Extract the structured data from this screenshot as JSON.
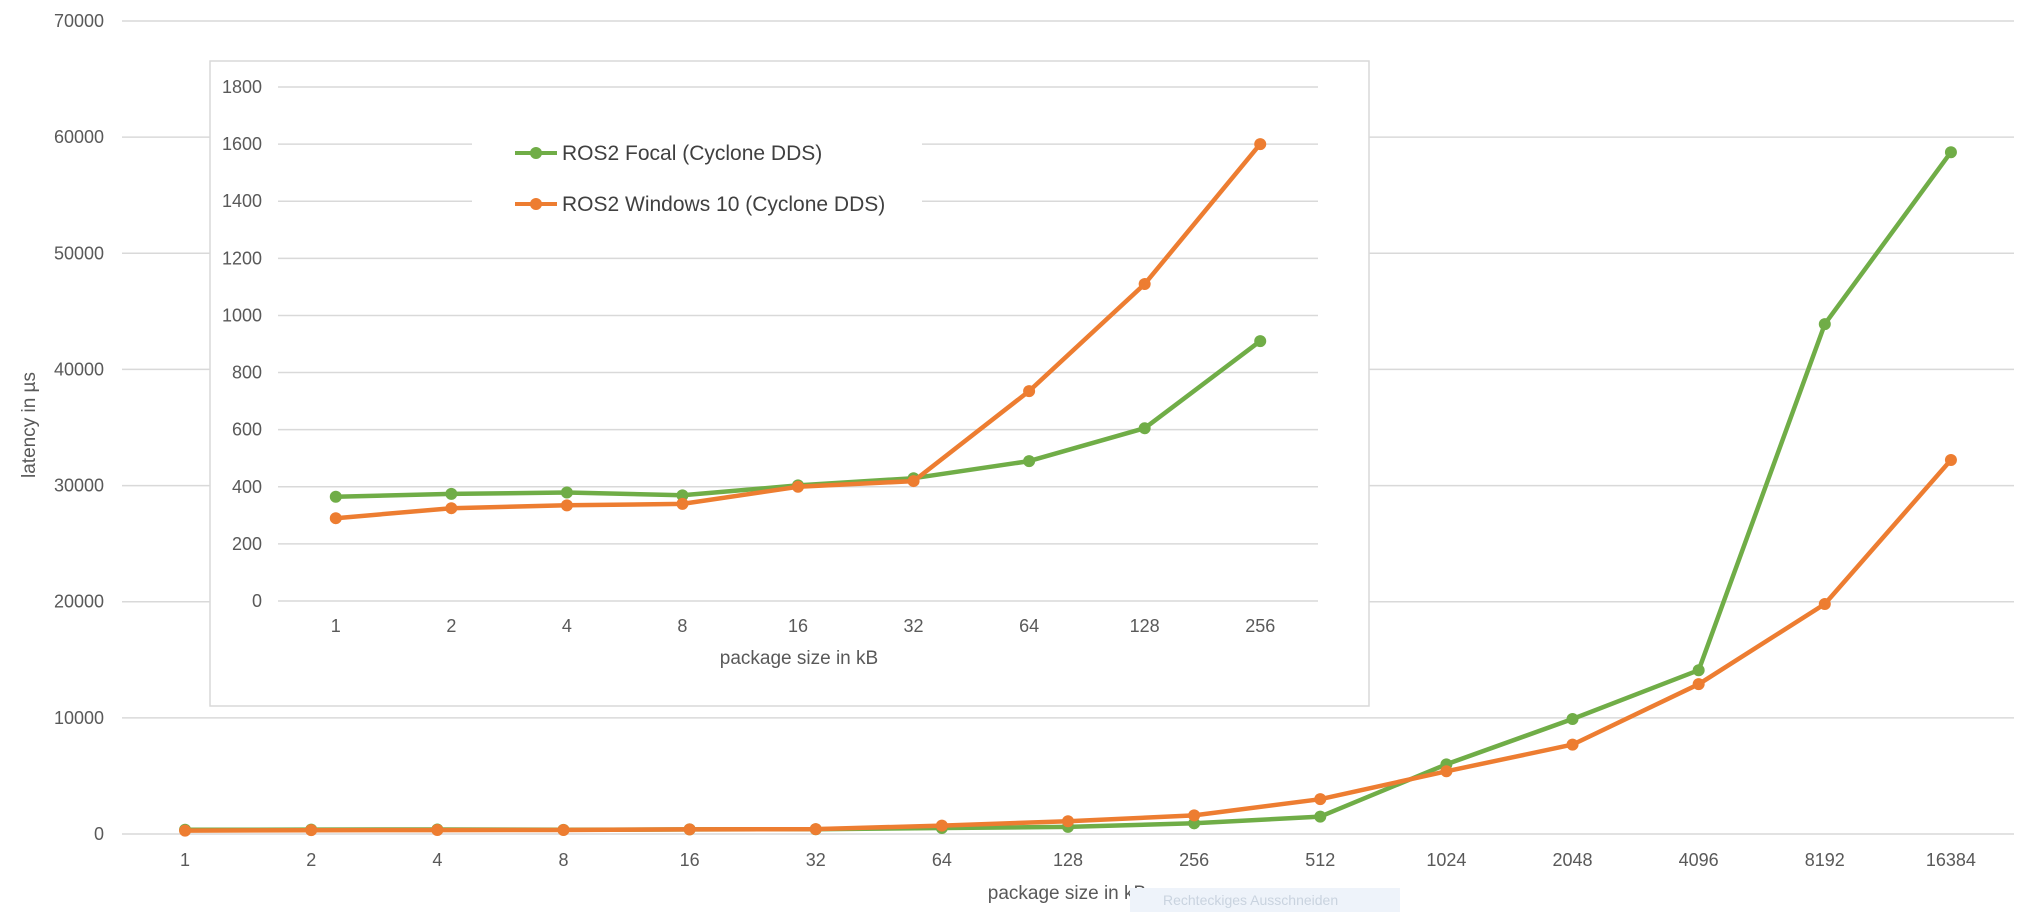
{
  "chart_data": [
    {
      "type": "line",
      "xlabel": "package size in kB",
      "ylabel": "latency in µs",
      "categories": [
        "1",
        "2",
        "4",
        "8",
        "16",
        "32",
        "64",
        "128",
        "256",
        "512",
        "1024",
        "2048",
        "4096",
        "8192",
        "16384"
      ],
      "ylim": [
        0,
        70000
      ],
      "yticks": [
        0,
        10000,
        20000,
        30000,
        40000,
        50000,
        60000,
        70000
      ],
      "grid": "horizontal",
      "series": [
        {
          "name": "ROS2 Focal (Cyclone DDS)",
          "color": "#70AD47",
          "values": [
            365,
            375,
            385,
            360,
            400,
            410,
            520,
            610,
            920,
            1500,
            6000,
            9900,
            14100,
            43900,
            58700
          ]
        },
        {
          "name": "ROS2 Windows 10 (Cyclone DDS)",
          "color": "#ED7D31",
          "values": [
            290,
            330,
            340,
            345,
            395,
            420,
            720,
            1100,
            1600,
            3000,
            5400,
            7700,
            12900,
            19800,
            32200
          ]
        }
      ]
    },
    {
      "type": "line",
      "xlabel": "package size in kB",
      "ylabel": "",
      "categories": [
        "1",
        "2",
        "4",
        "8",
        "16",
        "32",
        "64",
        "128",
        "256"
      ],
      "ylim": [
        0,
        1800
      ],
      "yticks": [
        0,
        200,
        400,
        600,
        800,
        1000,
        1200,
        1400,
        1600,
        1800
      ],
      "grid": "horizontal",
      "legend": "top-left",
      "series": [
        {
          "name": "ROS2 Focal (Cyclone DDS)",
          "color": "#70AD47",
          "values": [
            365,
            375,
            380,
            370,
            405,
            430,
            490,
            605,
            910
          ]
        },
        {
          "name": "ROS2 Windows 10 (Cyclone DDS)",
          "color": "#ED7D31",
          "values": [
            290,
            325,
            335,
            340,
            400,
            420,
            735,
            1110,
            1600
          ]
        }
      ]
    }
  ],
  "overlay": {
    "text": "Rechteckiges Ausschneiden"
  }
}
